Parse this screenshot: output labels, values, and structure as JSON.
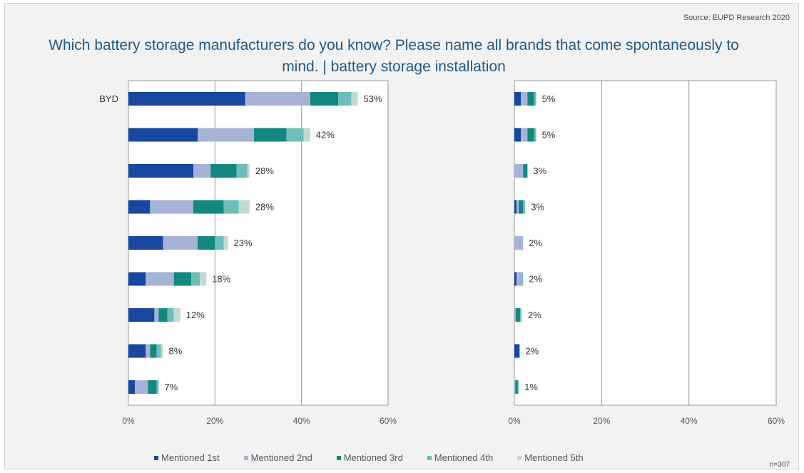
{
  "source": "Source: EUPD Research 2020",
  "title": "Which battery storage manufacturers do you know? Please name all brands that come spontaneously to mind. | battery storage installation",
  "sample_size": "n=307",
  "colors": {
    "Mentioned 1st": "#17479e",
    "Mentioned 2nd": "#a6b3d6",
    "Mentioned 3rd": "#12887f",
    "Mentioned 4th": "#6ebeb7",
    "Mentioned 5th": "#bddcd8"
  },
  "chart_data": [
    {
      "type": "bar",
      "orientation": "horizontal",
      "stacked": true,
      "categories": [
        "BYD",
        "",
        "",
        "",
        "",
        "",
        "",
        "",
        ""
      ],
      "totals": [
        "53%",
        "42%",
        "28%",
        "28%",
        "23%",
        "18%",
        "12%",
        "8%",
        "7%"
      ],
      "series": [
        {
          "name": "Mentioned 1st",
          "values": [
            27,
            16,
            15,
            5,
            8,
            4,
            6,
            4,
            1.5
          ]
        },
        {
          "name": "Mentioned 2nd",
          "values": [
            15,
            13,
            4,
            10,
            8,
            6.5,
            1,
            1,
            3
          ]
        },
        {
          "name": "Mentioned 3rd",
          "values": [
            6.5,
            7.5,
            6,
            7,
            4,
            4,
            2,
            1.5,
            2
          ]
        },
        {
          "name": "Mentioned 4th",
          "values": [
            3,
            4,
            2.5,
            3.5,
            2,
            2,
            1.5,
            1,
            0.5
          ]
        },
        {
          "name": "Mentioned 5th",
          "values": [
            1.5,
            1.5,
            0.5,
            2.5,
            1,
            1.5,
            1.5,
            0.5,
            0
          ]
        }
      ],
      "xlim": [
        0,
        60
      ],
      "xticks": [
        "0%",
        "20%",
        "40%",
        "60%"
      ]
    },
    {
      "type": "bar",
      "orientation": "horizontal",
      "stacked": true,
      "categories": [
        "",
        "",
        "",
        "",
        "",
        "",
        "",
        "",
        ""
      ],
      "totals": [
        "5%",
        "5%",
        "3%",
        "3%",
        "2%",
        "2%",
        "2%",
        "2%",
        "1%"
      ],
      "series": [
        {
          "name": "Mentioned 1st",
          "values": [
            1.5,
            1.5,
            0,
            0.5,
            0,
            0.5,
            0,
            1.2,
            0
          ]
        },
        {
          "name": "Mentioned 2nd",
          "values": [
            1.5,
            1.5,
            2,
            0.5,
            2,
            1,
            0.3,
            0,
            0.2
          ]
        },
        {
          "name": "Mentioned 3rd",
          "values": [
            1.5,
            1.5,
            1,
            1,
            0,
            0,
            1,
            0,
            0.6
          ]
        },
        {
          "name": "Mentioned 4th",
          "values": [
            0.5,
            0.5,
            0,
            0.5,
            0,
            0.5,
            0.2,
            0,
            0.2
          ]
        },
        {
          "name": "Mentioned 5th",
          "values": [
            0,
            0,
            0,
            0,
            0,
            0,
            0.3,
            0,
            0
          ]
        }
      ],
      "xlim": [
        0,
        60
      ],
      "xticks": [
        "0%",
        "20%",
        "40%",
        "60%"
      ]
    }
  ],
  "legend": [
    "Mentioned 1st",
    "Mentioned 2nd",
    "Mentioned 3rd",
    "Mentioned 4th",
    "Mentioned 5th"
  ]
}
